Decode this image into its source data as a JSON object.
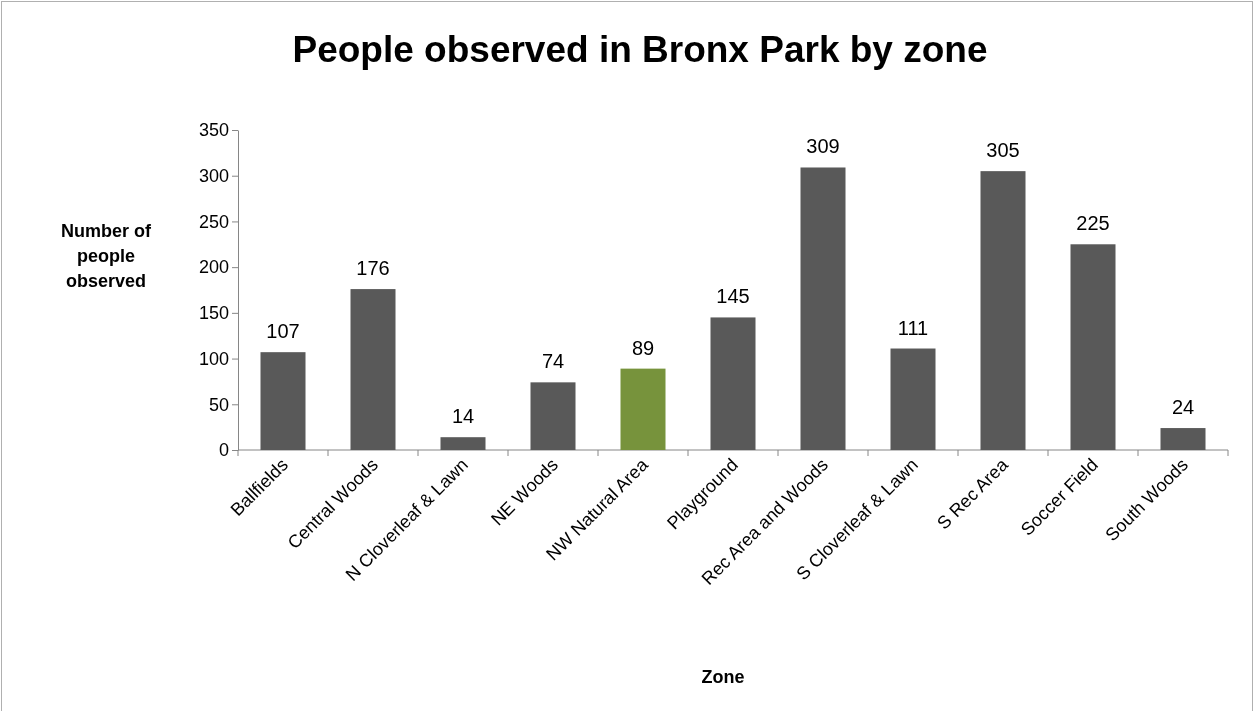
{
  "chart_data": {
    "type": "bar",
    "title": "People observed in Bronx Park by zone",
    "xlabel": "Zone",
    "ylabel": "Number of people observed",
    "categories": [
      "Ballfields",
      "Central Woods",
      "N Cloverleaf & Lawn",
      "NE Woods",
      "NW Natural Area",
      "Playground",
      "Rec Area and Woods",
      "S Cloverleaf & Lawn",
      "S Rec Area",
      "Soccer Field",
      "South Woods"
    ],
    "values": [
      107,
      176,
      14,
      74,
      89,
      145,
      309,
      111,
      305,
      225,
      24
    ],
    "colors": [
      "#595959",
      "#595959",
      "#595959",
      "#595959",
      "#77933c",
      "#595959",
      "#595959",
      "#595959",
      "#595959",
      "#595959",
      "#595959"
    ],
    "ylim": [
      0,
      350
    ],
    "yticks": [
      0,
      50,
      100,
      150,
      200,
      250,
      300,
      350
    ],
    "grid": false,
    "data_labels": true
  }
}
